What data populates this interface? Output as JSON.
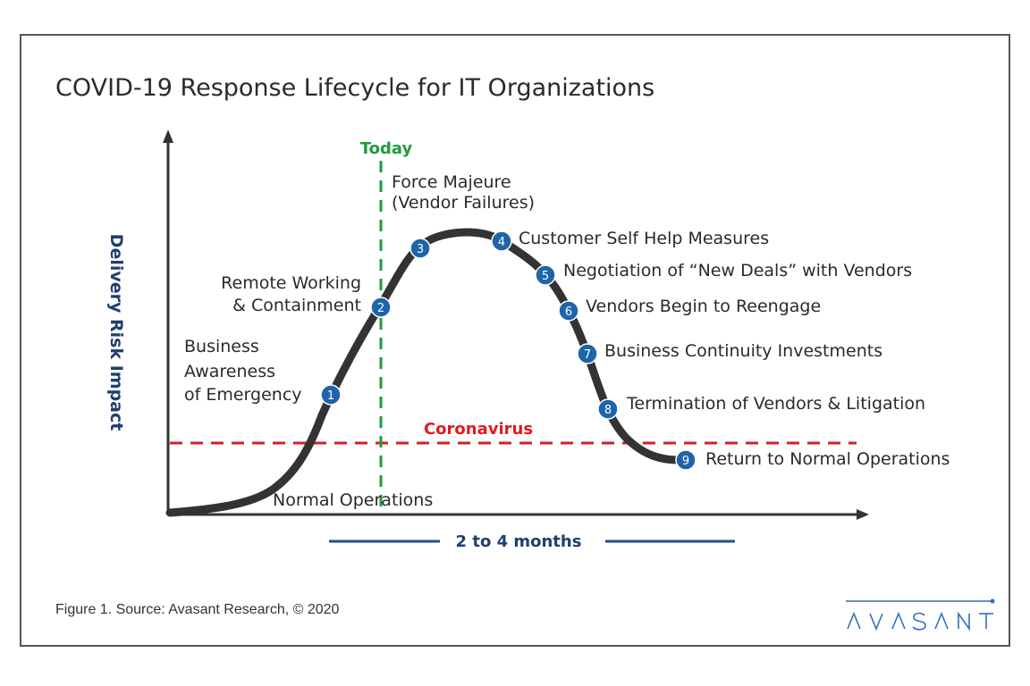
{
  "title": "COVID-19 Response Lifecycle for IT Organizations",
  "y_axis_label": "Delivery Risk Impact",
  "today_label": "Today",
  "threshold_label": "Coronavirus",
  "baseline_label": "Normal Operations",
  "timespan_label": "2 to 4 months",
  "stages": [
    {
      "number": "1",
      "label_lines": [
        "Business",
        "Awareness",
        "of Emergency"
      ]
    },
    {
      "number": "2",
      "label_lines": [
        "Remote Working",
        "& Containment"
      ]
    },
    {
      "number": "3",
      "label_lines": [
        "Force Majeure",
        "(Vendor Failures)"
      ]
    },
    {
      "number": "4",
      "label_lines": [
        "Customer Self Help Measures"
      ]
    },
    {
      "number": "5",
      "label_lines": [
        "Negotiation of “New Deals” with Vendors"
      ]
    },
    {
      "number": "6",
      "label_lines": [
        "Vendors Begin to Reengage"
      ]
    },
    {
      "number": "7",
      "label_lines": [
        "Business Continuity Investments"
      ]
    },
    {
      "number": "8",
      "label_lines": [
        "Termination of Vendors & Litigation"
      ]
    },
    {
      "number": "9",
      "label_lines": [
        "Return to Normal Operations"
      ]
    }
  ],
  "caption": "Figure 1. Source: Avasant Research, © 2020",
  "logo_text": "AVASANT",
  "colors": {
    "marker": "#1f64a8",
    "today": "#1f9a3c",
    "threshold": "#d0202a",
    "axis_label": "#1f3f6e",
    "curve": "#333333",
    "timespan": "#1f4f8a"
  }
}
